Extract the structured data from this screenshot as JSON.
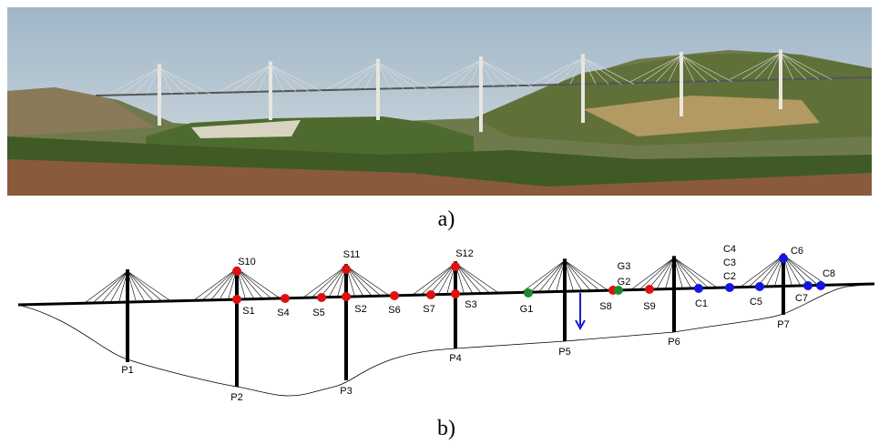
{
  "captions": {
    "a": "a)",
    "b": "b)"
  },
  "pylons": [
    "P1",
    "P2",
    "P3",
    "P4",
    "P5",
    "P6",
    "P7"
  ],
  "sensors": [
    "S1",
    "S2",
    "S3",
    "S4",
    "S5",
    "S6",
    "S7",
    "S8",
    "S9",
    "S10",
    "S11",
    "S12",
    "G1",
    "G2",
    "G3",
    "C1",
    "C2",
    "C3",
    "C4",
    "C5",
    "C6",
    "C7",
    "C8"
  ]
}
